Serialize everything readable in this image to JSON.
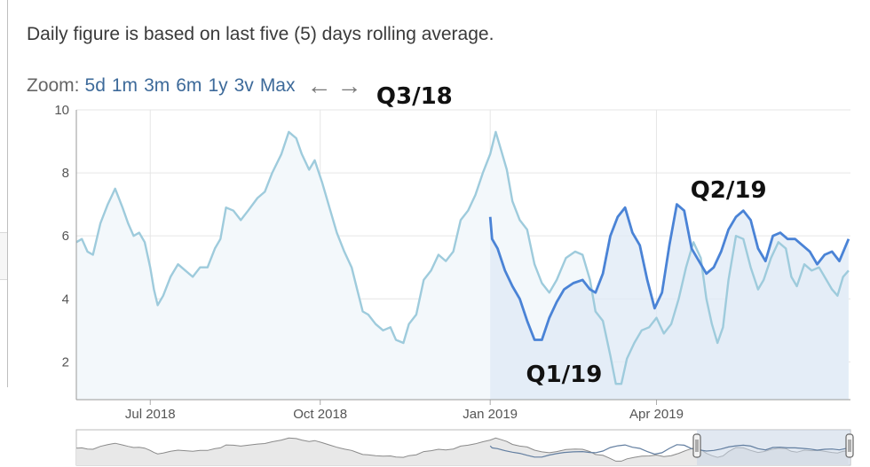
{
  "note": "Daily figure is based on last five (5) days rolling average.",
  "zoom": {
    "label": "Zoom:",
    "options": [
      "5d",
      "1m",
      "3m",
      "6m",
      "1y",
      "3v",
      "Max"
    ]
  },
  "icons": {
    "back": "arrow-left-icon",
    "forward": "arrow-right-icon"
  },
  "colors": {
    "prev_series": "#9ecbdc",
    "current_series": "#4a83d6",
    "prev_fill": "#f3f8fb",
    "current_fill": "#dfeaf6",
    "navigator_line": "#8a8a8a",
    "navigator_selected": "#627ea0"
  },
  "chart_data": {
    "type": "line",
    "ylim": [
      0.8,
      10
    ],
    "y_ticks": [
      2,
      4,
      6,
      8,
      10
    ],
    "x_ticks": [
      "Jul 2018",
      "Oct 2018",
      "Jan 2019",
      "Apr 2019"
    ],
    "x_tick_dates": [
      "2018-07-01",
      "2018-10-01",
      "2019-01-01",
      "2019-04-01"
    ],
    "grid": true,
    "annotations": [
      {
        "text": "Q3/18",
        "date": "2018-11-21"
      },
      {
        "text": "Q1/19",
        "date": "2019-02-10"
      },
      {
        "text": "Q2/19",
        "date": "2019-05-10"
      }
    ],
    "series": [
      {
        "values": [
          [
            "2018-05-22",
            5.8
          ],
          [
            "2018-05-25",
            5.9
          ],
          [
            "2018-05-28",
            5.5
          ],
          [
            "2018-05-31",
            5.4
          ],
          [
            "2018-06-04",
            6.4
          ],
          [
            "2018-06-08",
            7.0
          ],
          [
            "2018-06-12",
            7.5
          ],
          [
            "2018-06-16",
            6.9
          ],
          [
            "2018-06-19",
            6.4
          ],
          [
            "2018-06-22",
            6.0
          ],
          [
            "2018-06-25",
            6.1
          ],
          [
            "2018-06-28",
            5.8
          ],
          [
            "2018-07-01",
            5.0
          ],
          [
            "2018-07-03",
            4.3
          ],
          [
            "2018-07-05",
            3.8
          ],
          [
            "2018-07-08",
            4.1
          ],
          [
            "2018-07-12",
            4.7
          ],
          [
            "2018-07-16",
            5.1
          ],
          [
            "2018-07-20",
            4.9
          ],
          [
            "2018-07-24",
            4.7
          ],
          [
            "2018-07-28",
            5.0
          ],
          [
            "2018-08-01",
            5.0
          ],
          [
            "2018-08-05",
            5.6
          ],
          [
            "2018-08-08",
            5.9
          ],
          [
            "2018-08-11",
            6.9
          ],
          [
            "2018-08-15",
            6.8
          ],
          [
            "2018-08-19",
            6.5
          ],
          [
            "2018-08-23",
            6.8
          ],
          [
            "2018-08-28",
            7.2
          ],
          [
            "2018-09-01",
            7.4
          ],
          [
            "2018-09-05",
            8.0
          ],
          [
            "2018-09-10",
            8.6
          ],
          [
            "2018-09-14",
            9.3
          ],
          [
            "2018-09-18",
            9.1
          ],
          [
            "2018-09-21",
            8.6
          ],
          [
            "2018-09-25",
            8.1
          ],
          [
            "2018-09-28",
            8.4
          ],
          [
            "2018-10-02",
            7.7
          ],
          [
            "2018-10-06",
            6.9
          ],
          [
            "2018-10-10",
            6.1
          ],
          [
            "2018-10-14",
            5.5
          ],
          [
            "2018-10-18",
            5.0
          ],
          [
            "2018-10-21",
            4.3
          ],
          [
            "2018-10-24",
            3.6
          ],
          [
            "2018-10-27",
            3.5
          ],
          [
            "2018-10-31",
            3.2
          ],
          [
            "2018-11-04",
            3.0
          ],
          [
            "2018-11-08",
            3.1
          ],
          [
            "2018-11-11",
            2.7
          ],
          [
            "2018-11-15",
            2.6
          ],
          [
            "2018-11-18",
            3.2
          ],
          [
            "2018-11-22",
            3.5
          ],
          [
            "2018-11-26",
            4.6
          ],
          [
            "2018-11-30",
            4.9
          ],
          [
            "2018-12-04",
            5.4
          ],
          [
            "2018-12-08",
            5.2
          ],
          [
            "2018-12-12",
            5.5
          ],
          [
            "2018-12-16",
            6.5
          ],
          [
            "2018-12-20",
            6.8
          ],
          [
            "2018-12-24",
            7.3
          ],
          [
            "2018-12-28",
            8.0
          ],
          [
            "2019-01-01",
            8.6
          ],
          [
            "2019-01-04",
            9.3
          ],
          [
            "2019-01-07",
            8.7
          ],
          [
            "2019-01-10",
            8.1
          ],
          [
            "2019-01-13",
            7.1
          ],
          [
            "2019-01-17",
            6.5
          ],
          [
            "2019-01-21",
            6.2
          ],
          [
            "2019-01-25",
            5.1
          ],
          [
            "2019-01-29",
            4.5
          ],
          [
            "2019-02-02",
            4.2
          ],
          [
            "2019-02-06",
            4.6
          ],
          [
            "2019-02-11",
            5.3
          ],
          [
            "2019-02-16",
            5.5
          ],
          [
            "2019-02-20",
            5.4
          ],
          [
            "2019-02-24",
            4.6
          ],
          [
            "2019-02-27",
            3.6
          ],
          [
            "2019-03-03",
            3.3
          ],
          [
            "2019-03-07",
            2.2
          ],
          [
            "2019-03-10",
            1.3
          ],
          [
            "2019-03-13",
            1.3
          ],
          [
            "2019-03-16",
            2.1
          ],
          [
            "2019-03-20",
            2.6
          ],
          [
            "2019-03-24",
            3.0
          ],
          [
            "2019-03-28",
            3.1
          ],
          [
            "2019-04-01",
            3.4
          ],
          [
            "2019-04-05",
            2.9
          ],
          [
            "2019-04-09",
            3.2
          ],
          [
            "2019-04-13",
            4.0
          ],
          [
            "2019-04-17",
            5.0
          ],
          [
            "2019-04-21",
            5.8
          ],
          [
            "2019-04-25",
            5.3
          ],
          [
            "2019-04-28",
            4.0
          ],
          [
            "2019-05-01",
            3.2
          ],
          [
            "2019-05-04",
            2.6
          ],
          [
            "2019-05-07",
            3.1
          ],
          [
            "2019-05-10",
            4.6
          ],
          [
            "2019-05-14",
            6.0
          ],
          [
            "2019-05-18",
            5.9
          ],
          [
            "2019-05-22",
            5.0
          ],
          [
            "2019-05-26",
            4.3
          ],
          [
            "2019-05-29",
            4.6
          ],
          [
            "2019-06-02",
            5.3
          ],
          [
            "2019-06-06",
            5.8
          ],
          [
            "2019-06-10",
            5.6
          ],
          [
            "2019-06-13",
            4.7
          ],
          [
            "2019-06-16",
            4.4
          ],
          [
            "2019-06-20",
            5.1
          ],
          [
            "2019-06-24",
            4.9
          ],
          [
            "2019-06-28",
            5.0
          ],
          [
            "2019-07-02",
            4.6
          ],
          [
            "2019-07-05",
            4.3
          ],
          [
            "2019-07-08",
            4.1
          ],
          [
            "2019-07-11",
            4.7
          ],
          [
            "2019-07-14",
            4.9
          ]
        ]
      },
      {
        "values": [
          [
            "2019-01-01",
            6.6
          ],
          [
            "2019-01-02",
            5.9
          ],
          [
            "2019-01-05",
            5.6
          ],
          [
            "2019-01-09",
            4.9
          ],
          [
            "2019-01-13",
            4.4
          ],
          [
            "2019-01-17",
            4.0
          ],
          [
            "2019-01-21",
            3.3
          ],
          [
            "2019-01-25",
            2.7
          ],
          [
            "2019-01-29",
            2.7
          ],
          [
            "2019-02-02",
            3.4
          ],
          [
            "2019-02-06",
            3.9
          ],
          [
            "2019-02-10",
            4.3
          ],
          [
            "2019-02-15",
            4.5
          ],
          [
            "2019-02-20",
            4.6
          ],
          [
            "2019-02-24",
            4.3
          ],
          [
            "2019-02-27",
            4.2
          ],
          [
            "2019-03-03",
            4.8
          ],
          [
            "2019-03-07",
            6.0
          ],
          [
            "2019-03-11",
            6.6
          ],
          [
            "2019-03-15",
            6.9
          ],
          [
            "2019-03-19",
            6.1
          ],
          [
            "2019-03-23",
            5.7
          ],
          [
            "2019-03-27",
            4.6
          ],
          [
            "2019-03-31",
            3.7
          ],
          [
            "2019-04-04",
            4.2
          ],
          [
            "2019-04-08",
            5.7
          ],
          [
            "2019-04-12",
            7.0
          ],
          [
            "2019-04-16",
            6.8
          ],
          [
            "2019-04-20",
            5.6
          ],
          [
            "2019-04-24",
            5.2
          ],
          [
            "2019-04-28",
            4.8
          ],
          [
            "2019-05-02",
            5.0
          ],
          [
            "2019-05-06",
            5.5
          ],
          [
            "2019-05-10",
            6.2
          ],
          [
            "2019-05-14",
            6.6
          ],
          [
            "2019-05-18",
            6.8
          ],
          [
            "2019-05-22",
            6.5
          ],
          [
            "2019-05-26",
            5.6
          ],
          [
            "2019-05-30",
            5.2
          ],
          [
            "2019-06-03",
            6.0
          ],
          [
            "2019-06-07",
            6.1
          ],
          [
            "2019-06-11",
            5.9
          ],
          [
            "2019-06-15",
            5.9
          ],
          [
            "2019-06-19",
            5.7
          ],
          [
            "2019-06-23",
            5.5
          ],
          [
            "2019-06-27",
            5.1
          ],
          [
            "2019-07-01",
            5.4
          ],
          [
            "2019-07-05",
            5.5
          ],
          [
            "2019-07-09",
            5.2
          ],
          [
            "2019-07-14",
            5.9
          ]
        ]
      }
    ]
  }
}
